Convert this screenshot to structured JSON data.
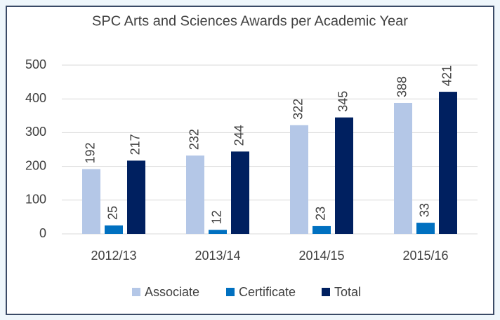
{
  "chart_data": {
    "type": "bar",
    "title": "SPC Arts and Sciences Awards per Academic Year",
    "categories": [
      "2012/13",
      "2013/14",
      "2014/15",
      "2015/16"
    ],
    "series": [
      {
        "name": "Associate",
        "color": "#b4c7e7",
        "values": [
          192,
          232,
          322,
          388
        ]
      },
      {
        "name": "Certificate",
        "color": "#0070c0",
        "values": [
          25,
          12,
          23,
          33
        ]
      },
      {
        "name": "Total",
        "color": "#002060",
        "values": [
          217,
          244,
          345,
          421
        ]
      }
    ],
    "ylim": [
      0,
      500
    ],
    "yticks": [
      0,
      100,
      200,
      300,
      400,
      500
    ],
    "grid": true,
    "legend": "bottom",
    "data_labels": true
  }
}
